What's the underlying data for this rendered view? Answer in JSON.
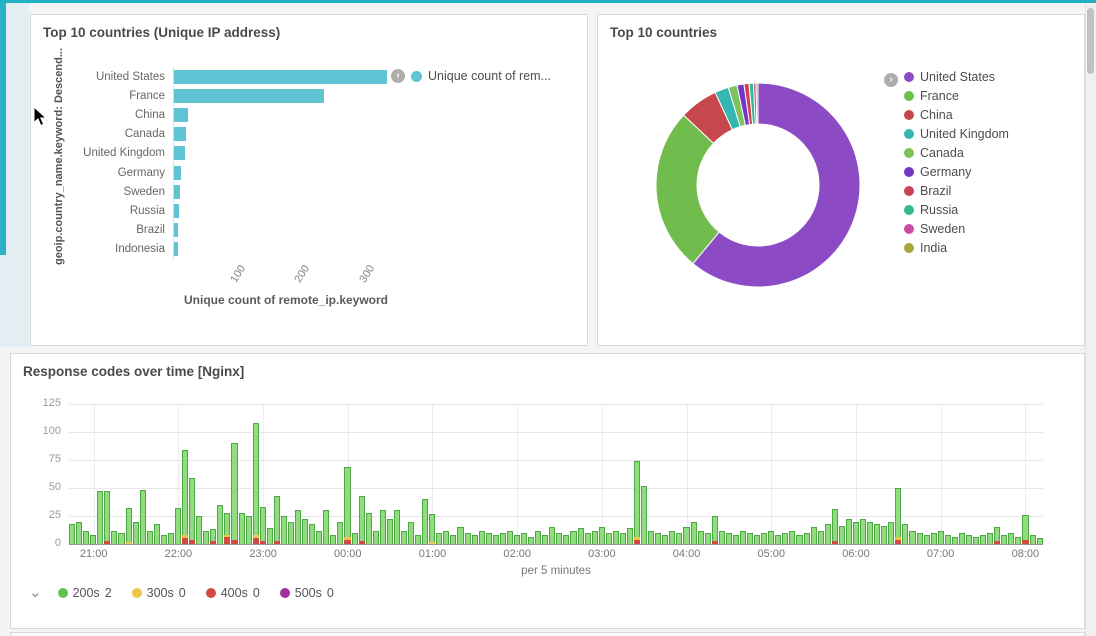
{
  "page": {
    "background_color": "#f4f4f4",
    "accent_color": "#22b1c3"
  },
  "panels": {
    "bar": {
      "title": "Top 10 countries (Unique IP address)",
      "legend_label": "Unique count of rem...",
      "legend_expand_icon": "chevron-right-circle"
    },
    "donut": {
      "title": "Top 10 countries",
      "legend_expand_icon": "chevron-right-circle"
    },
    "time": {
      "title": "Response codes over time [Nginx]",
      "legend_collapse_icon": "chevron-down"
    }
  },
  "chart_data": [
    {
      "type": "bar",
      "title": "Top 10 countries (Unique IP address)",
      "orientation": "horizontal",
      "categories": [
        "United States",
        "France",
        "China",
        "Canada",
        "United Kingdom",
        "Germany",
        "Sweden",
        "Russia",
        "Brazil",
        "Indonesia"
      ],
      "values": [
        332,
        234,
        23,
        20,
        18,
        13,
        11,
        9,
        8,
        7
      ],
      "xlabel": "Unique count of remote_ip.keyword",
      "ylabel": "geoip.country_name.keyword: Descend...",
      "xticks": [
        100,
        200,
        300
      ],
      "xlim": 350,
      "bar_color": "#5fc4d4",
      "legend": [
        "Unique count of rem..."
      ]
    },
    {
      "type": "pie",
      "title": "Top 10 countries",
      "donut": true,
      "note": "slice values are approximate proportions (per-mille)",
      "slices": [
        {
          "label": "United States",
          "value": 610,
          "color": "#8c4bc4"
        },
        {
          "label": "France",
          "value": 260,
          "color": "#70bd4d"
        },
        {
          "label": "China",
          "value": 61,
          "color": "#c6484d"
        },
        {
          "label": "United Kingdom",
          "value": 22,
          "color": "#36b6b0"
        },
        {
          "label": "Canada",
          "value": 14,
          "color": "#7fc15a"
        },
        {
          "label": "Germany",
          "value": 11,
          "color": "#7337c8"
        },
        {
          "label": "Brazil",
          "value": 8,
          "color": "#cb4357"
        },
        {
          "label": "Russia",
          "value": 7,
          "color": "#33ba90"
        },
        {
          "label": "Sweden",
          "value": 4,
          "color": "#cb4aa5"
        },
        {
          "label": "India",
          "value": 3,
          "color": "#a5a73a"
        }
      ]
    },
    {
      "type": "bar",
      "title": "Response codes over time [Nginx]",
      "stacked": true,
      "x_axis_note": "per 5 minutes",
      "x_start": "20:45",
      "interval_minutes": 5,
      "ylim": 125,
      "yticks": [
        0,
        25,
        50,
        75,
        100,
        125
      ],
      "hour_labels": [
        "21:00",
        "22:00",
        "23:00",
        "00:00",
        "01:00",
        "02:00",
        "03:00",
        "04:00",
        "05:00",
        "06:00",
        "07:00",
        "08:00"
      ],
      "hour_label_indices": [
        3,
        15,
        27,
        39,
        51,
        63,
        75,
        87,
        99,
        111,
        123,
        135
      ],
      "series": [
        {
          "name": "200s",
          "count_label": "2",
          "color": "#62c252",
          "bar_fill": "#8fdd7d",
          "bar_border": "#4fa846",
          "values": [
            18,
            20,
            12,
            8,
            47,
            44,
            12,
            10,
            30,
            20,
            48,
            12,
            18,
            8,
            10,
            32,
            76,
            55,
            25,
            12,
            10,
            35,
            20,
            86,
            28,
            25,
            100,
            30,
            14,
            40,
            25,
            20,
            30,
            22,
            18,
            12,
            30,
            8,
            20,
            63,
            10,
            40,
            28,
            12,
            30,
            22,
            30,
            12,
            20,
            8,
            40,
            25,
            10,
            12,
            8,
            15,
            10,
            8,
            12,
            10,
            8,
            10,
            12,
            8,
            10,
            6,
            12,
            8,
            15,
            10,
            8,
            12,
            14,
            10,
            12,
            15,
            10,
            12,
            10,
            14,
            68,
            52,
            12,
            10,
            8,
            12,
            10,
            15,
            20,
            12,
            10,
            22,
            12,
            10,
            8,
            12,
            10,
            8,
            10,
            12,
            8,
            10,
            12,
            8,
            10,
            15,
            12,
            18,
            28,
            16,
            22,
            20,
            22,
            20,
            18,
            16,
            20,
            44,
            18,
            12,
            10,
            8,
            10,
            12,
            8,
            6,
            10,
            8,
            6,
            8,
            10,
            12,
            8,
            10,
            6,
            22,
            8,
            5
          ]
        },
        {
          "name": "300s",
          "count_label": "0",
          "color": "#eec44d",
          "sparse_values": {
            "8": 2,
            "16": 3,
            "22": 2,
            "26": 3,
            "39": 2,
            "51": 2,
            "80": 2,
            "117": 2
          }
        },
        {
          "name": "400s",
          "count_label": "0",
          "color": "#d14a42",
          "sparse_values": {
            "5": 3,
            "16": 5,
            "17": 4,
            "20": 3,
            "22": 6,
            "23": 4,
            "26": 5,
            "27": 3,
            "29": 3,
            "39": 4,
            "41": 3,
            "80": 4,
            "91": 3,
            "108": 3,
            "117": 4,
            "131": 3,
            "135": 4
          }
        },
        {
          "name": "500s",
          "count_label": "0",
          "color": "#a12f9e",
          "sparse_values": {}
        }
      ]
    }
  ]
}
